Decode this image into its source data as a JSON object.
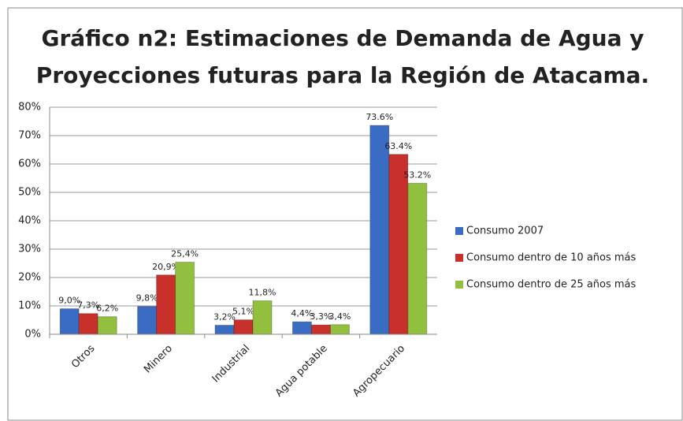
{
  "chart_data": {
    "type": "bar",
    "title": "Gráfico n2: Estimaciones de Demanda de Agua y Proyecciones futuras para la Región de Atacama.",
    "categories": [
      "Otros",
      "Minero",
      "Industrial",
      "Agua potable",
      "Agropecuario"
    ],
    "series": [
      {
        "name": "Consumo 2007",
        "color": "#3b6cc4",
        "values": [
          9.0,
          9.8,
          3.2,
          4.4,
          73.6
        ],
        "value_labels": [
          "9,0%",
          "9,8%",
          "3,2%",
          "4,4%",
          "73.6%"
        ]
      },
      {
        "name": "Consumo dentro de 10 años más",
        "color": "#c8312b",
        "values": [
          7.3,
          20.9,
          5.1,
          3.3,
          63.4
        ],
        "value_labels": [
          "7,3%",
          "20,9%",
          "5,1%",
          "3,3%",
          "63.4%"
        ]
      },
      {
        "name": "Consumo dentro de 25 años más",
        "color": "#92c03e",
        "values": [
          6.2,
          25.4,
          11.8,
          3.4,
          53.2
        ],
        "value_labels": [
          "6,2%",
          "25,4%",
          "11,8%",
          "3,4%",
          "53.2%"
        ]
      }
    ],
    "ylim": [
      0,
      80
    ],
    "yticks": [
      {
        "value": 0,
        "label": "0%"
      },
      {
        "value": 10,
        "label": "10%"
      },
      {
        "value": 20,
        "label": "20%"
      },
      {
        "value": 30,
        "label": "30%"
      },
      {
        "value": 40,
        "label": "40%"
      },
      {
        "value": 50,
        "label": "50%"
      },
      {
        "value": 60,
        "label": "60%"
      },
      {
        "value": 70,
        "label": "70%"
      },
      {
        "value": 80,
        "label": "80%"
      }
    ],
    "grid": true,
    "legend": "right"
  }
}
